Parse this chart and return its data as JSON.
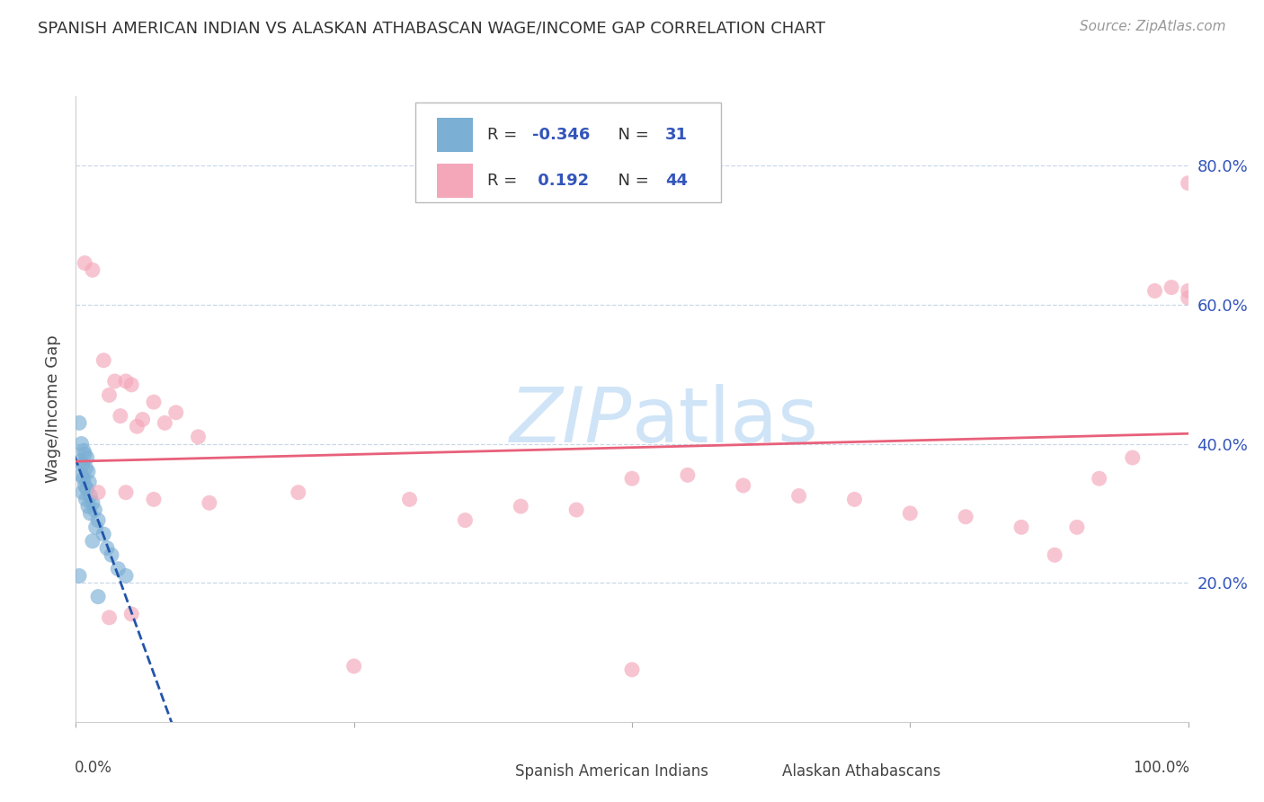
{
  "title": "SPANISH AMERICAN INDIAN VS ALASKAN ATHABASCAN WAGE/INCOME GAP CORRELATION CHART",
  "source": "Source: ZipAtlas.com",
  "ylabel": "Wage/Income Gap",
  "legend_blue_r": "-0.346",
  "legend_blue_n": "31",
  "legend_pink_r": "0.192",
  "legend_pink_n": "44",
  "legend_label_blue": "Spanish American Indians",
  "legend_label_pink": "Alaskan Athabascans",
  "blue_scatter": [
    [
      0.3,
      43.0
    ],
    [
      0.5,
      40.0
    ],
    [
      0.7,
      39.0
    ],
    [
      0.8,
      38.5
    ],
    [
      1.0,
      38.0
    ],
    [
      0.4,
      37.5
    ],
    [
      0.6,
      37.0
    ],
    [
      0.9,
      36.5
    ],
    [
      1.1,
      36.0
    ],
    [
      0.5,
      35.5
    ],
    [
      0.7,
      35.0
    ],
    [
      1.2,
      34.5
    ],
    [
      0.8,
      34.0
    ],
    [
      1.0,
      33.5
    ],
    [
      0.6,
      33.0
    ],
    [
      1.3,
      32.5
    ],
    [
      0.9,
      32.0
    ],
    [
      1.5,
      31.5
    ],
    [
      1.1,
      31.0
    ],
    [
      1.7,
      30.5
    ],
    [
      1.3,
      30.0
    ],
    [
      2.0,
      29.0
    ],
    [
      1.8,
      28.0
    ],
    [
      2.5,
      27.0
    ],
    [
      1.5,
      26.0
    ],
    [
      2.8,
      25.0
    ],
    [
      3.2,
      24.0
    ],
    [
      3.8,
      22.0
    ],
    [
      4.5,
      21.0
    ],
    [
      0.3,
      21.0
    ],
    [
      2.0,
      18.0
    ]
  ],
  "pink_scatter": [
    [
      0.8,
      66.0
    ],
    [
      1.5,
      65.0
    ],
    [
      2.5,
      52.0
    ],
    [
      3.5,
      49.0
    ],
    [
      4.5,
      49.0
    ],
    [
      5.0,
      48.5
    ],
    [
      3.0,
      47.0
    ],
    [
      7.0,
      46.0
    ],
    [
      9.0,
      44.5
    ],
    [
      4.0,
      44.0
    ],
    [
      6.0,
      43.5
    ],
    [
      8.0,
      43.0
    ],
    [
      5.5,
      42.5
    ],
    [
      11.0,
      41.0
    ],
    [
      2.0,
      33.0
    ],
    [
      4.5,
      33.0
    ],
    [
      7.0,
      32.0
    ],
    [
      12.0,
      31.5
    ],
    [
      20.0,
      33.0
    ],
    [
      30.0,
      32.0
    ],
    [
      35.0,
      29.0
    ],
    [
      40.0,
      31.0
    ],
    [
      45.0,
      30.5
    ],
    [
      50.0,
      35.0
    ],
    [
      55.0,
      35.5
    ],
    [
      60.0,
      34.0
    ],
    [
      65.0,
      32.5
    ],
    [
      70.0,
      32.0
    ],
    [
      75.0,
      30.0
    ],
    [
      80.0,
      29.5
    ],
    [
      85.0,
      28.0
    ],
    [
      88.0,
      24.0
    ],
    [
      90.0,
      28.0
    ],
    [
      92.0,
      35.0
    ],
    [
      95.0,
      38.0
    ],
    [
      97.0,
      62.0
    ],
    [
      98.5,
      62.5
    ],
    [
      100.0,
      77.5
    ],
    [
      100.0,
      62.0
    ],
    [
      100.0,
      61.0
    ],
    [
      3.0,
      15.0
    ],
    [
      5.0,
      15.5
    ],
    [
      25.0,
      8.0
    ],
    [
      50.0,
      7.5
    ]
  ],
  "blue_color": "#7bafd4",
  "pink_color": "#f4a7b9",
  "blue_line_color": "#2255aa",
  "pink_line_color": "#e8607a",
  "watermark_color": "#d0e4f7",
  "background_color": "#ffffff",
  "ytick_color": "#3355bb",
  "grid_color": "#c8d8e8",
  "yticks": [
    20.0,
    40.0,
    60.0,
    80.0
  ],
  "xlim": [
    0,
    100
  ],
  "ylim": [
    0,
    90
  ]
}
